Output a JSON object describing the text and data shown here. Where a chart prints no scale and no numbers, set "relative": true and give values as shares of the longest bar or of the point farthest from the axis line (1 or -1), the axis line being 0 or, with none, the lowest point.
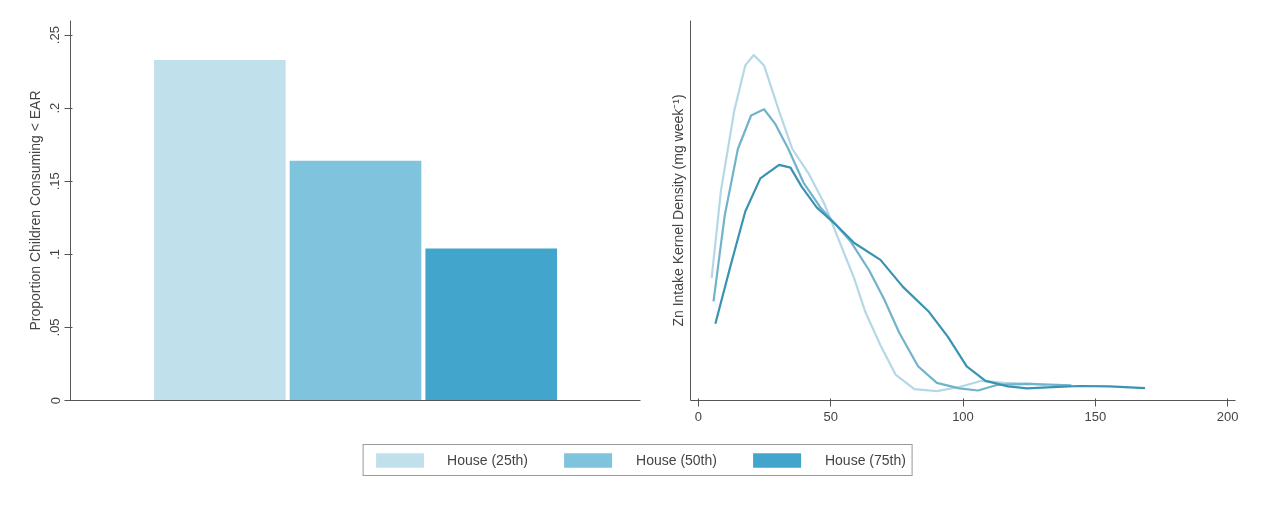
{
  "chart_data": [
    {
      "type": "bar",
      "ylabel": "Proportion Children Consuming < EAR",
      "categories": [
        null
      ],
      "series": [
        {
          "name": "House (25th)",
          "color": "#c0e0ec",
          "values": [
            0.233
          ]
        },
        {
          "name": "House (50th)",
          "color": "#80c3dd",
          "values": [
            0.164
          ]
        },
        {
          "name": "House (75th)",
          "color": "#42a6cc",
          "values": [
            0.104
          ]
        }
      ],
      "ylim": [
        0,
        0.26
      ],
      "yticks": [
        0,
        {
          "value": 0.05,
          "label": ".05"
        },
        {
          "value": 0.1,
          "label": ".1"
        },
        {
          "value": 0.15,
          "label": ".15"
        },
        {
          "value": 0.2,
          "label": ".2"
        },
        {
          "value": 0.25,
          "label": ".25"
        }
      ],
      "tick_labels": "y",
      "grid": false,
      "legend": "bottom"
    },
    {
      "type": "line",
      "relative": true,
      "ylabel": "Zn Intake Kernel Density (mg week⁻¹)",
      "xlim": [
        -3,
        203
      ],
      "xticks": [
        0,
        50,
        100,
        150,
        200
      ],
      "tick_labels": "x",
      "grid": false,
      "legend": false,
      "marker": "none",
      "line_style": "solid",
      "series": [
        {
          "color": "#b5d8e6",
          "x": [
            5.0,
            8.5,
            13.5,
            17.7,
            20.9,
            24.8,
            30.5,
            35.5,
            41.8,
            47.5,
            53.2,
            58.9,
            63.1,
            68.8,
            74.5,
            81.6,
            90.1,
            98.6,
            107.1,
            115.6,
            127,
            131
          ],
          "values": [
            0.355,
            0.607,
            0.837,
            0.97,
            1.0,
            0.97,
            0.837,
            0.728,
            0.655,
            0.571,
            0.462,
            0.353,
            0.256,
            0.16,
            0.075,
            0.033,
            0.027,
            0.039,
            0.057,
            0.051,
            0.048,
            0.045
          ]
        },
        {
          "color": "#72b3cc",
          "x": [
            5.7,
            9.9,
            14.9,
            19.9,
            24.8,
            29.1,
            34.0,
            39.7,
            46.1,
            51.8,
            57.4,
            64.5,
            70.2,
            75.9,
            83.0,
            90.1,
            98.6,
            105.7,
            112.8,
            124.1,
            135.5,
            141
          ],
          "values": [
            0.287,
            0.534,
            0.728,
            0.825,
            0.843,
            0.8,
            0.728,
            0.631,
            0.559,
            0.51,
            0.462,
            0.377,
            0.293,
            0.196,
            0.099,
            0.051,
            0.035,
            0.029,
            0.045,
            0.048,
            0.045,
            0.044
          ]
        },
        {
          "color": "#3a93b3",
          "x": [
            6.4,
            12.1,
            17.7,
            23.4,
            30.5,
            34.8,
            39.0,
            44.7,
            51.8,
            58.9,
            68.8,
            77.3,
            87.2,
            94.3,
            101.4,
            108.5,
            117.0,
            124.1,
            134.0,
            144.0,
            155.3,
            168.8
          ],
          "values": [
            0.222,
            0.389,
            0.547,
            0.643,
            0.682,
            0.674,
            0.619,
            0.559,
            0.51,
            0.456,
            0.407,
            0.329,
            0.256,
            0.184,
            0.099,
            0.057,
            0.041,
            0.035,
            0.039,
            0.042,
            0.041,
            0.036
          ]
        }
      ]
    }
  ]
}
